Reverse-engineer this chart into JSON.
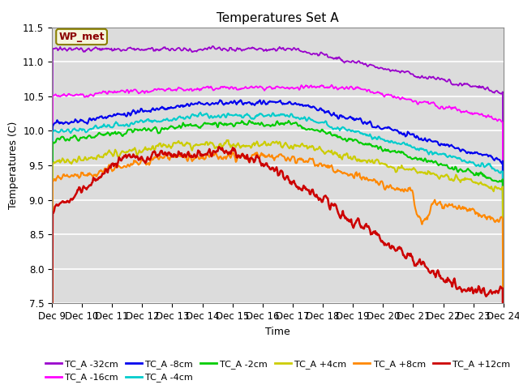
{
  "title": "Temperatures Set A",
  "xlabel": "Time",
  "ylabel": "Temperatures (C)",
  "ylim": [
    7.5,
    11.5
  ],
  "x_tick_labels": [
    "Dec 9",
    "Dec 10",
    "Dec 11",
    "Dec 12",
    "Dec 13",
    "Dec 14",
    "Dec 15",
    "Dec 16",
    "Dec 17",
    "Dec 18",
    "Dec 19",
    "Dec 20",
    "Dec 21",
    "Dec 22",
    "Dec 23",
    "Dec 24"
  ],
  "annotation": "WP_met",
  "background_color": "#dcdcdc",
  "grid_color": "#ffffff",
  "series": [
    {
      "label": "TC_A -32cm",
      "color": "#9900CC",
      "lw": 1.3
    },
    {
      "label": "TC_A -16cm",
      "color": "#FF00FF",
      "lw": 1.3
    },
    {
      "label": "TC_A -8cm",
      "color": "#0000EE",
      "lw": 1.5
    },
    {
      "label": "TC_A -4cm",
      "color": "#00CCCC",
      "lw": 1.5
    },
    {
      "label": "TC_A -2cm",
      "color": "#00CC00",
      "lw": 1.5
    },
    {
      "label": "TC_A +4cm",
      "color": "#CCCC00",
      "lw": 1.5
    },
    {
      "label": "TC_A +8cm",
      "color": "#FF8800",
      "lw": 1.5
    },
    {
      "label": "TC_A +12cm",
      "color": "#CC0000",
      "lw": 1.8
    }
  ]
}
